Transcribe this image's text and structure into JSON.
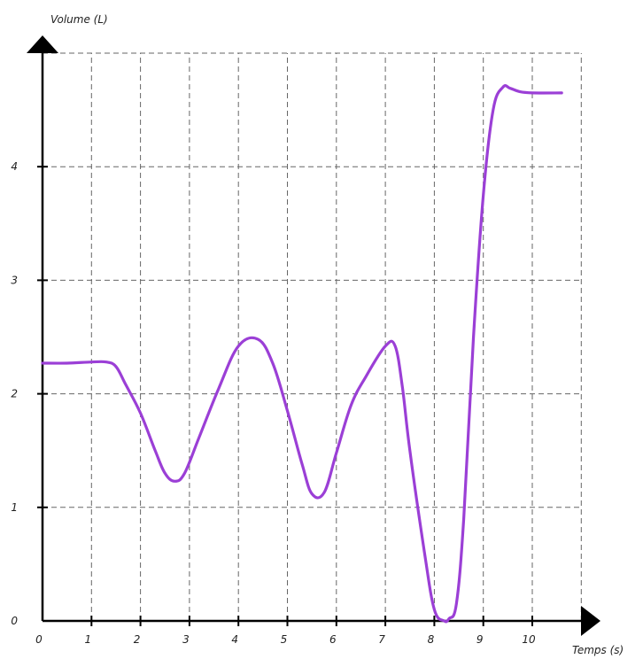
{
  "chart_data": {
    "type": "line",
    "xlabel": "Temps (s)",
    "ylabel": "Volume (L)",
    "xlim": [
      0,
      11
    ],
    "ylim": [
      0,
      5
    ],
    "x_ticks": [
      "0",
      "1",
      "2",
      "3",
      "4",
      "5",
      "6",
      "7",
      "8",
      "9",
      "10"
    ],
    "y_ticks": [
      "0",
      "1",
      "2",
      "3",
      "4"
    ],
    "grid": true,
    "color": "#9b3fd6",
    "series": [
      {
        "x": [
          0,
          0.5,
          1,
          1.3,
          1.5,
          1.7,
          2,
          2.3,
          2.5,
          2.7,
          2.9,
          3.2,
          3.6,
          4,
          4.4,
          4.7,
          5,
          5.3,
          5.5,
          5.75,
          6,
          6.3,
          6.6,
          7,
          7.2,
          7.35,
          7.5,
          7.8,
          8,
          8.2,
          8.3,
          8.45,
          8.6,
          8.8,
          9,
          9.2,
          9.4,
          9.55,
          9.75,
          10,
          10.6
        ],
        "y": [
          2.27,
          2.27,
          2.28,
          2.28,
          2.24,
          2.08,
          1.83,
          1.5,
          1.3,
          1.23,
          1.3,
          1.62,
          2.05,
          2.42,
          2.48,
          2.27,
          1.85,
          1.38,
          1.12,
          1.13,
          1.48,
          1.9,
          2.15,
          2.42,
          2.42,
          2.05,
          1.5,
          0.6,
          0.1,
          0.0,
          0.02,
          0.15,
          0.9,
          2.5,
          3.75,
          4.5,
          4.7,
          4.69,
          4.66,
          4.65,
          4.65
        ]
      }
    ]
  }
}
